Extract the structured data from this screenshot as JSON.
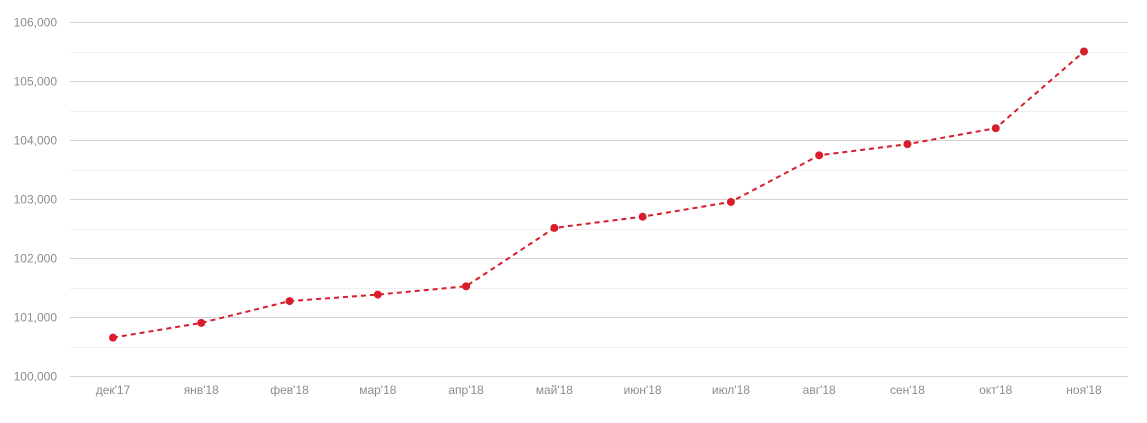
{
  "chart_data": {
    "type": "line",
    "categories": [
      "дек'17",
      "янв'18",
      "фев'18",
      "мар'18",
      "апр'18",
      "май'18",
      "июн'18",
      "июл'18",
      "авг'18",
      "сен'18",
      "окт'18",
      "ноя'18"
    ],
    "series": [
      {
        "values": [
          100.65,
          100.9,
          101.27,
          101.38,
          101.52,
          102.51,
          102.7,
          102.95,
          103.74,
          103.93,
          104.2,
          105.5
        ],
        "color": "#d81e2c",
        "line_style": "dashed",
        "markers": "circle"
      }
    ],
    "yticks": [
      {
        "value": 100,
        "label": "100,000"
      },
      {
        "value": 101,
        "label": "101,000"
      },
      {
        "value": 102,
        "label": "102,000"
      },
      {
        "value": 103,
        "label": "103,000"
      },
      {
        "value": 104,
        "label": "104,000"
      },
      {
        "value": 105,
        "label": "105,000"
      },
      {
        "value": 106,
        "label": "106,000"
      }
    ],
    "ylim": [
      100,
      106
    ],
    "minor_gridlines": true,
    "grid": true,
    "legend": "none",
    "title": "",
    "xlabel": "",
    "ylabel": ""
  }
}
